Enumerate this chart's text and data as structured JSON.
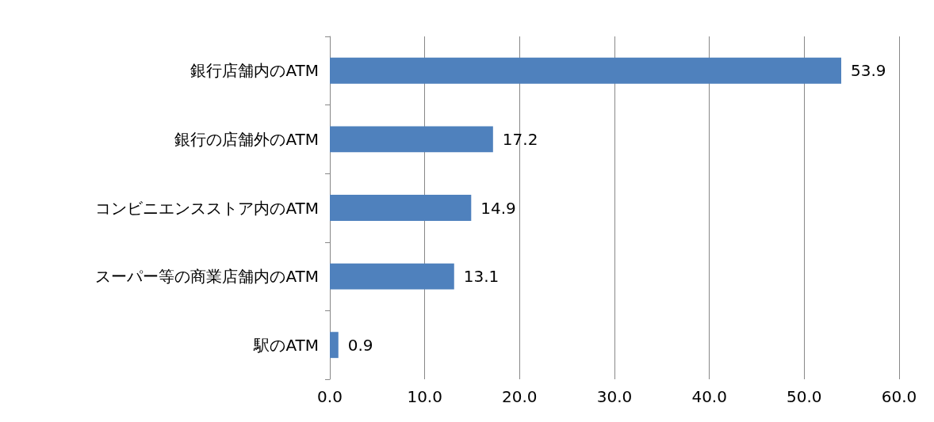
{
  "chart_data": {
    "type": "bar",
    "orientation": "horizontal",
    "categories": [
      "銀行店舗内のATM",
      "銀行の店舗外のATM",
      "コンビニエンスストア内のATM",
      "スーパー等の商業店舗内のATM",
      "駅のATM"
    ],
    "values": [
      53.9,
      17.2,
      14.9,
      13.1,
      0.9
    ],
    "color": "#4f81bd",
    "xlim": [
      0,
      60
    ],
    "xticks": [
      {
        "value": 0,
        "label": "0.0"
      },
      {
        "value": 10,
        "label": "10.0"
      },
      {
        "value": 20,
        "label": "20.0"
      },
      {
        "value": 30,
        "label": "30.0"
      },
      {
        "value": 40,
        "label": "40.0"
      },
      {
        "value": 50,
        "label": "50.0"
      },
      {
        "value": 60,
        "label": "60.0"
      }
    ],
    "grid": "x",
    "data_labels": true
  }
}
